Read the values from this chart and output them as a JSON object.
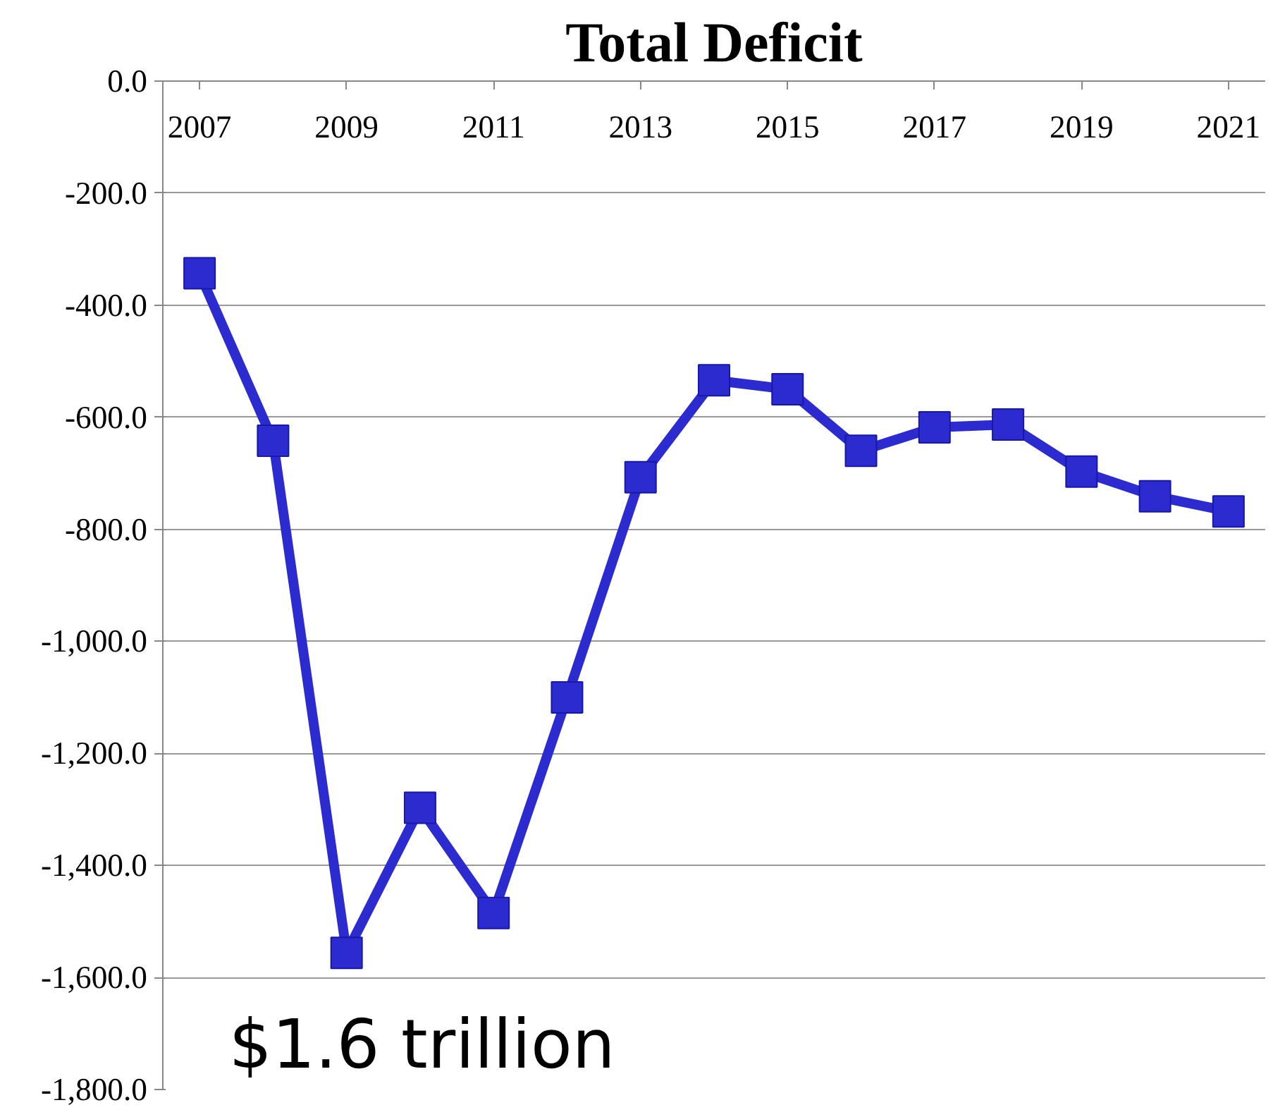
{
  "chart_data": {
    "type": "line",
    "title": "Total Deficit",
    "x": [
      2007,
      2008,
      2009,
      2010,
      2011,
      2012,
      2013,
      2014,
      2015,
      2016,
      2017,
      2018,
      2019,
      2020,
      2021
    ],
    "series": [
      {
        "color": "#2b2bd0",
        "values": [
          -343,
          -642,
          -1556,
          -1297,
          -1485,
          -1100,
          -707,
          -534,
          -550,
          -660,
          -618,
          -613,
          -697,
          -741,
          -768
        ]
      }
    ],
    "xlim": [
      2006.5,
      2021.5
    ],
    "xticks": [
      2007,
      2009,
      2011,
      2013,
      2015,
      2017,
      2019,
      2021
    ],
    "ylim": [
      -1800,
      0
    ],
    "yticks": [
      {
        "value": 0,
        "label": "0.0"
      },
      {
        "value": -200,
        "label": "-200.0"
      },
      {
        "value": -400,
        "label": "-400.0"
      },
      {
        "value": -600,
        "label": "-600.0"
      },
      {
        "value": -800,
        "label": "-800.0"
      },
      {
        "value": -1000,
        "label": "-1,000.0"
      },
      {
        "value": -1200,
        "label": "-1,200.0"
      },
      {
        "value": -1400,
        "label": "-1,400.0"
      },
      {
        "value": -1600,
        "label": "-1,600.0"
      },
      {
        "value": -1800,
        "label": "-1,800.0"
      }
    ],
    "annotations": [
      "$1.6 trillion"
    ],
    "grid": "y",
    "marker": "square",
    "line_style": "solid"
  }
}
